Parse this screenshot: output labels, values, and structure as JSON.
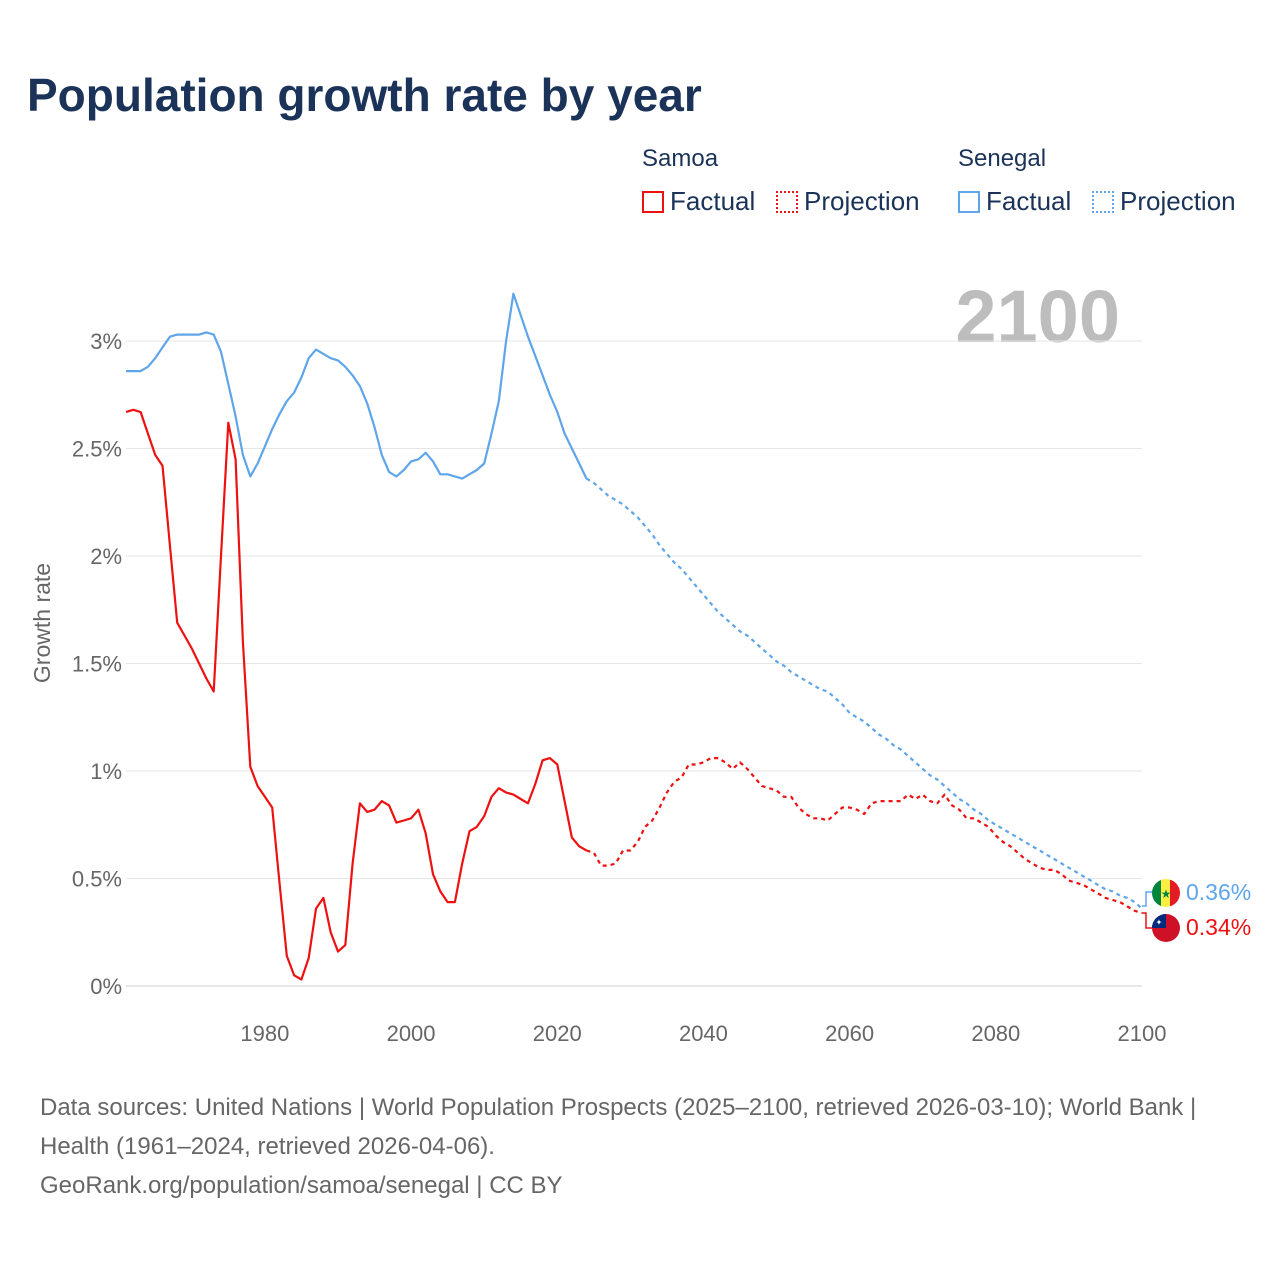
{
  "title": "Population growth rate by year",
  "legend": {
    "groups": [
      {
        "name": "Samoa",
        "color": "#ee1111",
        "factual": "Factual",
        "projection": "Projection"
      },
      {
        "name": "Senegal",
        "color": "#5fa5ea",
        "factual": "Factual",
        "projection": "Projection"
      }
    ]
  },
  "year_label": "2100",
  "end_labels": {
    "senegal": "0.36%",
    "samoa": "0.34%"
  },
  "footer": {
    "sources": "Data sources: United Nations | World Population Prospects (2025–2100, retrieved 2026-03-10); World Bank | Health (1961–2024, retrieved 2026-04-06).",
    "link": "GeoRank.org/population/samoa/senegal | CC BY"
  },
  "chart_data": {
    "type": "line",
    "title": "Population growth rate by year",
    "xlabel": "",
    "ylabel": "Growth rate",
    "xlim": [
      1961,
      2100
    ],
    "ylim": [
      0,
      3.3
    ],
    "xticks": [
      1980,
      2000,
      2020,
      2040,
      2060,
      2080,
      2100
    ],
    "xtick_labels": [
      "1980",
      "2000",
      "2020",
      "2040",
      "2060",
      "2080",
      "2100"
    ],
    "yticks": [
      0,
      0.5,
      1,
      1.5,
      2,
      2.5,
      3
    ],
    "ytick_labels": [
      "0%",
      "0.5%",
      "1%",
      "1.5%",
      "2%",
      "2.5%",
      "3%"
    ],
    "grid": true,
    "series": [
      {
        "name": "Senegal Factual",
        "color": "#5fa5ea",
        "dash": false,
        "x_start": 1961,
        "values": [
          2.86,
          2.86,
          2.86,
          2.88,
          2.92,
          2.97,
          3.02,
          3.03,
          3.03,
          3.03,
          3.03,
          3.04,
          3.03,
          2.95,
          2.8,
          2.65,
          2.47,
          2.37,
          2.43,
          2.51,
          2.59,
          2.66,
          2.72,
          2.76,
          2.83,
          2.92,
          2.96,
          2.94,
          2.92,
          2.91,
          2.88,
          2.84,
          2.79,
          2.71,
          2.6,
          2.47,
          2.39,
          2.37,
          2.4,
          2.44,
          2.45,
          2.48,
          2.44,
          2.38,
          2.38,
          2.37,
          2.36,
          2.38,
          2.4,
          2.43,
          2.57,
          2.72,
          3.0,
          3.22,
          3.12,
          3.02,
          2.93,
          2.84,
          2.75,
          2.67,
          2.57,
          2.5,
          2.43,
          2.36
        ]
      },
      {
        "name": "Senegal Projection",
        "color": "#5fa5ea",
        "dash": true,
        "x_start": 2024,
        "values": [
          2.36,
          2.34,
          2.31,
          2.28,
          2.26,
          2.24,
          2.21,
          2.18,
          2.14,
          2.1,
          2.05,
          2.01,
          1.97,
          1.94,
          1.9,
          1.86,
          1.82,
          1.78,
          1.74,
          1.71,
          1.68,
          1.65,
          1.63,
          1.6,
          1.57,
          1.54,
          1.51,
          1.49,
          1.46,
          1.44,
          1.42,
          1.4,
          1.38,
          1.37,
          1.34,
          1.31,
          1.27,
          1.25,
          1.23,
          1.2,
          1.17,
          1.15,
          1.12,
          1.1,
          1.07,
          1.04,
          1.01,
          0.98,
          0.96,
          0.93,
          0.9,
          0.87,
          0.85,
          0.82,
          0.8,
          0.77,
          0.75,
          0.73,
          0.71,
          0.69,
          0.67,
          0.65,
          0.63,
          0.61,
          0.59,
          0.57,
          0.55,
          0.53,
          0.51,
          0.49,
          0.47,
          0.45,
          0.44,
          0.42,
          0.41,
          0.39,
          0.36
        ]
      },
      {
        "name": "Samoa Factual",
        "color": "#ee1111",
        "dash": false,
        "x_start": 1961,
        "values": [
          2.67,
          2.68,
          2.67,
          2.57,
          2.47,
          2.42,
          2.05,
          1.69,
          1.63,
          1.57,
          1.5,
          1.43,
          1.37,
          2.0,
          2.62,
          2.45,
          1.6,
          1.02,
          0.93,
          0.88,
          0.83,
          0.48,
          0.14,
          0.05,
          0.03,
          0.13,
          0.36,
          0.41,
          0.25,
          0.16,
          0.19,
          0.57,
          0.85,
          0.81,
          0.82,
          0.86,
          0.84,
          0.76,
          0.77,
          0.78,
          0.82,
          0.71,
          0.52,
          0.44,
          0.39,
          0.39,
          0.57,
          0.72,
          0.74,
          0.79,
          0.88,
          0.92,
          0.9,
          0.89,
          0.87,
          0.85,
          0.94,
          1.05,
          1.06,
          1.03,
          0.86,
          0.69,
          0.65,
          0.63
        ]
      },
      {
        "name": "Samoa Projection",
        "color": "#ee1111",
        "dash": true,
        "x_start": 2024,
        "values": [
          0.63,
          0.62,
          0.56,
          0.56,
          0.57,
          0.63,
          0.63,
          0.67,
          0.74,
          0.77,
          0.83,
          0.9,
          0.95,
          0.97,
          1.03,
          1.03,
          1.04,
          1.06,
          1.06,
          1.04,
          1.01,
          1.04,
          1.01,
          0.97,
          0.93,
          0.92,
          0.91,
          0.88,
          0.88,
          0.83,
          0.8,
          0.78,
          0.78,
          0.77,
          0.8,
          0.83,
          0.83,
          0.82,
          0.8,
          0.85,
          0.86,
          0.86,
          0.86,
          0.86,
          0.89,
          0.87,
          0.89,
          0.86,
          0.85,
          0.89,
          0.84,
          0.82,
          0.78,
          0.78,
          0.76,
          0.74,
          0.7,
          0.67,
          0.65,
          0.62,
          0.59,
          0.57,
          0.55,
          0.54,
          0.54,
          0.52,
          0.49,
          0.48,
          0.47,
          0.45,
          0.43,
          0.41,
          0.4,
          0.39,
          0.37,
          0.35,
          0.34
        ]
      }
    ]
  }
}
